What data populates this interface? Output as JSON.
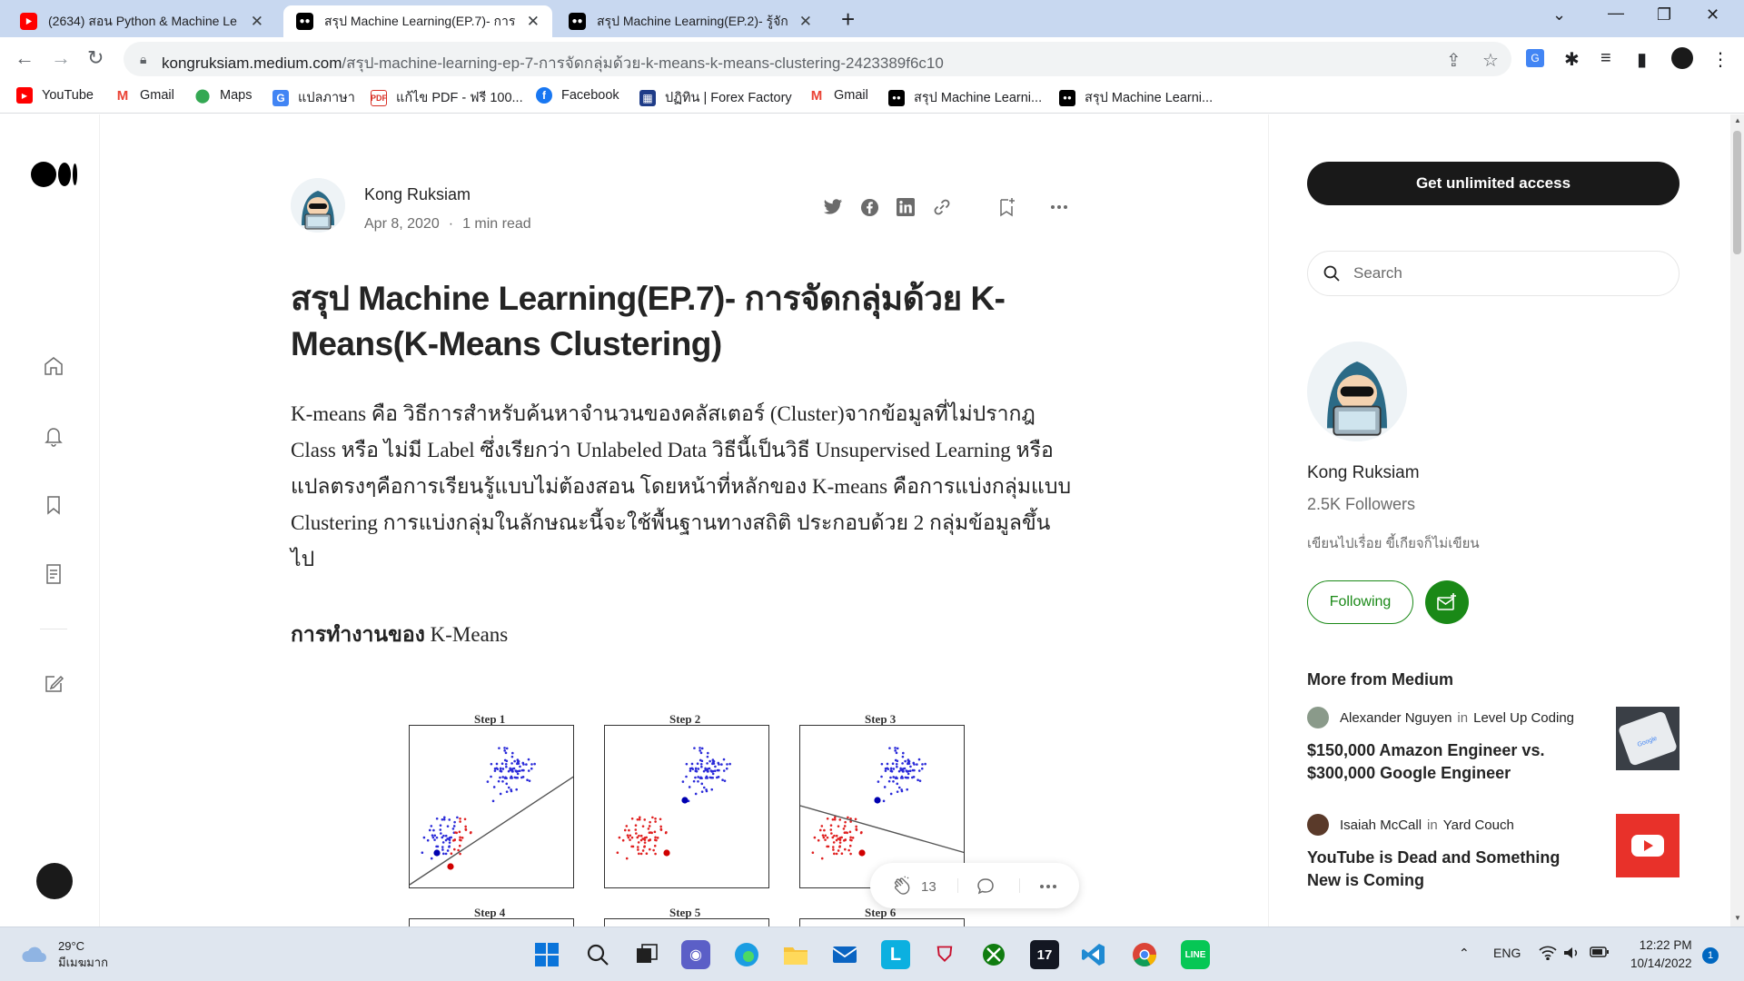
{
  "browser": {
    "tabs": [
      {
        "title": "(2634) สอน Python & Machine Le",
        "active": false,
        "favicon": "youtube-icon"
      },
      {
        "title": "สรุป Machine Learning(EP.7)- การ",
        "active": true,
        "favicon": "medium-icon"
      },
      {
        "title": "สรุป Machine Learning(EP.2)- รู้จัก",
        "active": false,
        "favicon": "medium-icon"
      }
    ],
    "url_host": "kongruksiam.medium.com",
    "url_path": "/สรุป-machine-learning-ep-7-การจัดกลุ่มด้วย-k-means-k-means-clustering-2423389f6c10",
    "bookmarks": [
      {
        "label": "YouTube",
        "icon": "youtube-icon"
      },
      {
        "label": "Gmail",
        "icon": "gmail-icon"
      },
      {
        "label": "Maps",
        "icon": "maps-icon"
      },
      {
        "label": "แปลภาษา",
        "icon": "translate-icon"
      },
      {
        "label": "แก้ไข PDF - ฟรี 100...",
        "icon": "pdf-icon"
      },
      {
        "label": "Facebook",
        "icon": "facebook-icon"
      },
      {
        "label": "ปฏิทิน | Forex Factory",
        "icon": "forex-icon"
      },
      {
        "label": "Gmail",
        "icon": "gmail-icon"
      },
      {
        "label": "สรุป Machine Learni...",
        "icon": "medium-icon"
      },
      {
        "label": "สรุป Machine Learni...",
        "icon": "medium-icon"
      }
    ]
  },
  "article": {
    "author": "Kong Ruksiam",
    "date": "Apr 8, 2020",
    "read_time": "1 min read",
    "title": "สรุป Machine Learning(EP.7)- การจัดกลุ่มด้วย K-Means(K-Means Clustering)",
    "body": "K-means คือ วิธีการสำหรับค้นหาจำนวนของคลัสเตอร์ (Cluster)จากข้อมูลที่ไม่ปรากฎ Class หรือ ไม่มี Label ซึ่งเรียกว่า Unlabeled Data วิธีนี้เป็นวิธี Unsupervised Learning หรือแปลตรงๆคือการเรียนรู้แบบไม่ต้องสอน โดยหน้าที่หลักของ K-means คือการแบ่งกลุ่มแบบ Clustering การแบ่งกลุ่มในลักษณะนี้จะใช้พื้นฐานทางสถิติ ประกอบด้วย 2 กลุ่มข้อมูลขึ้นไป",
    "section_bold": "การทำงานของ",
    "section_rest": " K-Means",
    "figure_steps": [
      "Step 1",
      "Step 2",
      "Step 3",
      "Step 4",
      "Step 5",
      "Step 6"
    ],
    "claps": "13"
  },
  "sidebar": {
    "cta": "Get unlimited access",
    "search_placeholder": "Search",
    "author_name": "Kong Ruksiam",
    "followers": "2.5K Followers",
    "bio": "เขียนไปเรื่อย ขี้เกียจก็ไม่เขียน",
    "following_label": "Following",
    "more_heading": "More from Medium",
    "recommendations": [
      {
        "author": "Alexander Nguyen",
        "in": "in",
        "publication": "Level Up Coding",
        "title": "$150,000 Amazon Engineer vs. $300,000 Google Engineer",
        "thumb": "google-phone-thumb"
      },
      {
        "author": "Isaiah McCall",
        "in": "in",
        "publication": "Yard Couch",
        "title": "YouTube is Dead and Something New is Coming",
        "thumb": "youtube-thumb"
      }
    ]
  },
  "taskbar": {
    "temp": "29°C",
    "weather": "มีเมฆมาก",
    "lang": "ENG",
    "time": "12:22 PM",
    "date": "10/14/2022",
    "notifications": "1"
  },
  "colors": {
    "accent_green": "#1a8917",
    "tabbar": "#c8d8f0",
    "dark_button": "#191919"
  }
}
